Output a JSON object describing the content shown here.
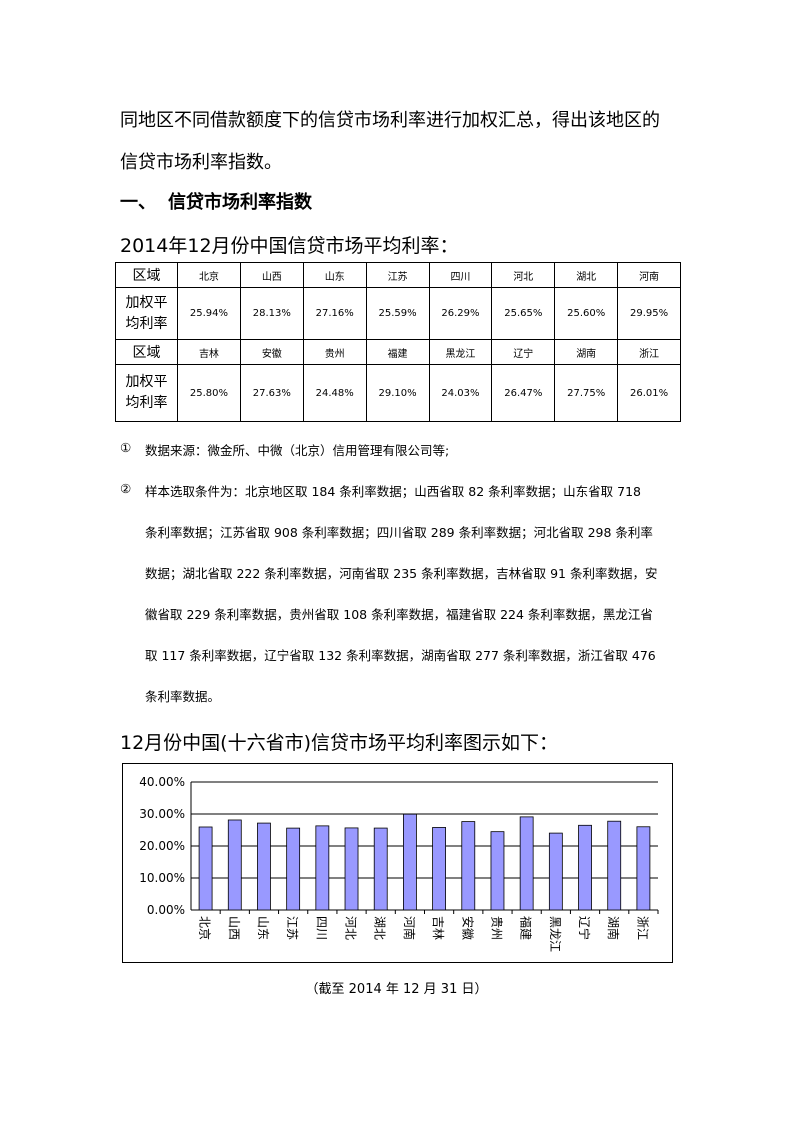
{
  "intro_lines": [
    "同地区不同借款额度下的信贷市场利率进行加权汇总，得出该地区的",
    "信贷市场利率指数。"
  ],
  "section": {
    "number": "一、",
    "title": "信贷市场利率指数"
  },
  "table_title": "2014年12月份中国信贷市场平均利率：",
  "table": {
    "region_label": "区域",
    "rate_label_lines": [
      "加权平",
      "均利率"
    ],
    "groups": [
      {
        "regions": [
          "北京",
          "山西",
          "山东",
          "江苏",
          "四川",
          "河北",
          "湖北",
          "河南"
        ],
        "rates": [
          "25.94%",
          "28.13%",
          "27.16%",
          "25.59%",
          "26.29%",
          "25.65%",
          "25.60%",
          "29.95%"
        ]
      },
      {
        "regions": [
          "吉林",
          "安徽",
          "贵州",
          "福建",
          "黑龙江",
          "辽宁",
          "湖南",
          "浙江"
        ],
        "rates": [
          "25.80%",
          "27.63%",
          "24.48%",
          "29.10%",
          "24.03%",
          "26.47%",
          "27.75%",
          "26.01%"
        ]
      }
    ]
  },
  "footnotes": [
    {
      "marker": "①",
      "lines": [
        "数据来源：微金所、中微（北京）信用管理有限公司等;"
      ]
    },
    {
      "marker": "②",
      "lines": [
        "样本选取条件为：北京地区取 184 条利率数据；山西省取 82 条利率数据；山东省取 718",
        "条利率数据；江苏省取 908 条利率数据；四川省取 289 条利率数据；河北省取 298 条利率",
        "数据；湖北省取 222 条利率数据，河南省取 235 条利率数据，吉林省取 91 条利率数据，安",
        "徽省取 229 条利率数据，贵州省取 108 条利率数据，福建省取 224 条利率数据，黑龙江省",
        "取 117 条利率数据，辽宁省取 132 条利率数据，湖南省取 277 条利率数据，浙江省取 476",
        "条利率数据。"
      ]
    }
  ],
  "chart_title": "12月份中国(十六省市)信贷市场平均利率图示如下：",
  "chart_data": {
    "type": "bar",
    "title": "",
    "xlabel": "",
    "ylabel": "",
    "categories": [
      "北京",
      "山西",
      "山东",
      "江苏",
      "四川",
      "河北",
      "湖北",
      "河南",
      "吉林",
      "安徽",
      "贵州",
      "福建",
      "黑龙江",
      "辽宁",
      "湖南",
      "浙江"
    ],
    "values": [
      25.94,
      28.13,
      27.16,
      25.59,
      26.29,
      25.65,
      25.6,
      29.95,
      25.8,
      27.63,
      24.48,
      29.1,
      24.03,
      26.47,
      27.75,
      26.01
    ],
    "ylim": [
      0,
      40
    ],
    "yticks": [
      "0.00%",
      "10.00%",
      "20.00%",
      "30.00%",
      "40.00%"
    ],
    "grid": true,
    "legend": "none",
    "bar_color": "#9999ff"
  },
  "caption": "（截至 2014 年 12 月 31 日）"
}
